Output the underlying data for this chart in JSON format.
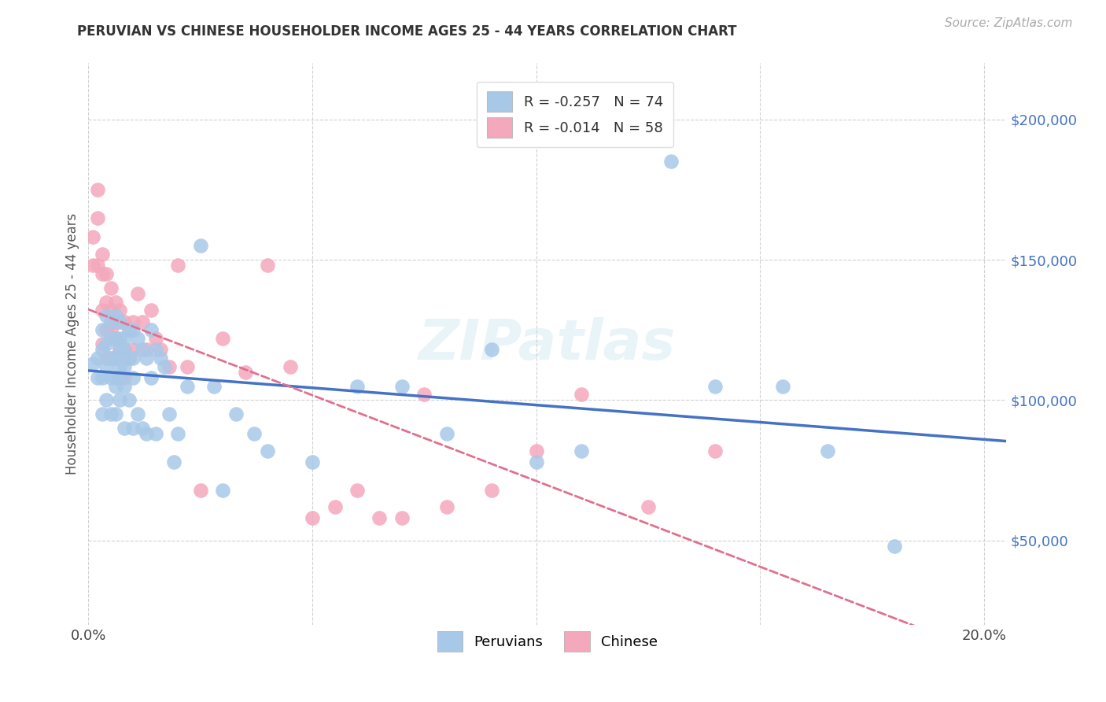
{
  "title": "PERUVIAN VS CHINESE HOUSEHOLDER INCOME AGES 25 - 44 YEARS CORRELATION CHART",
  "source": "Source: ZipAtlas.com",
  "ylabel": "Householder Income Ages 25 - 44 years",
  "xlim": [
    0.0,
    0.205
  ],
  "ylim": [
    20000,
    220000
  ],
  "yticks": [
    50000,
    100000,
    150000,
    200000
  ],
  "ytick_labels": [
    "$50,000",
    "$100,000",
    "$150,000",
    "$200,000"
  ],
  "xticks": [
    0.0,
    0.05,
    0.1,
    0.15,
    0.2
  ],
  "peruvians_color": "#a8c8e8",
  "chinese_color": "#f4a8bc",
  "peruvians_line_color": "#4472c4",
  "chinese_line_color": "#e07090",
  "r_peruvians": -0.257,
  "n_peruvians": 74,
  "r_chinese": -0.014,
  "n_chinese": 58,
  "watermark": "ZIPatlas",
  "peruvians_x": [
    0.001,
    0.002,
    0.002,
    0.003,
    0.003,
    0.003,
    0.003,
    0.004,
    0.004,
    0.004,
    0.004,
    0.005,
    0.005,
    0.005,
    0.005,
    0.005,
    0.006,
    0.006,
    0.006,
    0.006,
    0.006,
    0.006,
    0.007,
    0.007,
    0.007,
    0.007,
    0.007,
    0.007,
    0.008,
    0.008,
    0.008,
    0.008,
    0.008,
    0.009,
    0.009,
    0.009,
    0.01,
    0.01,
    0.01,
    0.01,
    0.011,
    0.011,
    0.012,
    0.012,
    0.013,
    0.013,
    0.014,
    0.014,
    0.015,
    0.015,
    0.016,
    0.017,
    0.018,
    0.019,
    0.02,
    0.022,
    0.025,
    0.028,
    0.03,
    0.033,
    0.037,
    0.04,
    0.05,
    0.06,
    0.07,
    0.08,
    0.09,
    0.1,
    0.11,
    0.13,
    0.14,
    0.155,
    0.165,
    0.18
  ],
  "peruvians_y": [
    113000,
    115000,
    108000,
    125000,
    118000,
    108000,
    95000,
    130000,
    120000,
    112000,
    100000,
    128000,
    122000,
    115000,
    108000,
    95000,
    130000,
    122000,
    115000,
    108000,
    105000,
    95000,
    128000,
    122000,
    118000,
    112000,
    108000,
    100000,
    122000,
    118000,
    112000,
    105000,
    90000,
    125000,
    115000,
    100000,
    125000,
    115000,
    108000,
    90000,
    122000,
    95000,
    118000,
    90000,
    115000,
    88000,
    125000,
    108000,
    118000,
    88000,
    115000,
    112000,
    95000,
    78000,
    88000,
    105000,
    155000,
    105000,
    68000,
    95000,
    88000,
    82000,
    78000,
    105000,
    105000,
    88000,
    118000,
    78000,
    82000,
    185000,
    105000,
    105000,
    82000,
    48000
  ],
  "chinese_x": [
    0.001,
    0.001,
    0.002,
    0.002,
    0.002,
    0.003,
    0.003,
    0.003,
    0.003,
    0.004,
    0.004,
    0.004,
    0.004,
    0.005,
    0.005,
    0.005,
    0.005,
    0.006,
    0.006,
    0.006,
    0.006,
    0.007,
    0.007,
    0.007,
    0.007,
    0.008,
    0.008,
    0.008,
    0.009,
    0.009,
    0.01,
    0.01,
    0.011,
    0.012,
    0.013,
    0.014,
    0.015,
    0.016,
    0.018,
    0.02,
    0.022,
    0.025,
    0.03,
    0.035,
    0.04,
    0.045,
    0.05,
    0.055,
    0.06,
    0.065,
    0.07,
    0.075,
    0.08,
    0.09,
    0.1,
    0.11,
    0.125,
    0.14
  ],
  "chinese_y": [
    158000,
    148000,
    175000,
    165000,
    148000,
    152000,
    145000,
    132000,
    120000,
    145000,
    135000,
    125000,
    115000,
    140000,
    132000,
    125000,
    115000,
    135000,
    128000,
    122000,
    115000,
    132000,
    128000,
    118000,
    108000,
    128000,
    118000,
    108000,
    125000,
    115000,
    128000,
    118000,
    138000,
    128000,
    118000,
    132000,
    122000,
    118000,
    112000,
    148000,
    112000,
    68000,
    122000,
    110000,
    148000,
    112000,
    58000,
    62000,
    68000,
    58000,
    58000,
    102000,
    62000,
    68000,
    82000,
    102000,
    62000,
    82000
  ]
}
